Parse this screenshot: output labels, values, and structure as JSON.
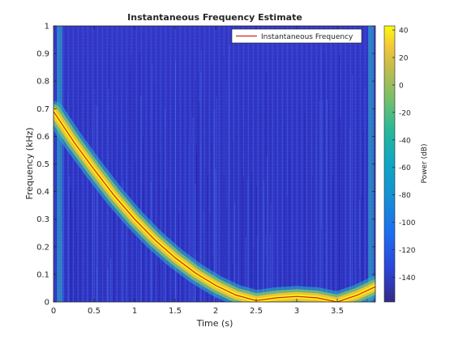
{
  "chart_data": {
    "type": "heatmap",
    "title": "Instantaneous Frequency Estimate",
    "xlabel": "Time (s)",
    "ylabel": "Frequency (kHz)",
    "xlim": [
      0,
      3.97
    ],
    "ylim": [
      0,
      1
    ],
    "xticks": [
      "0",
      "0.5",
      "1",
      "1.5",
      "2",
      "2.5",
      "3",
      "3.5"
    ],
    "xtick_values": [
      0,
      0.5,
      1,
      1.5,
      2,
      2.5,
      3,
      3.5
    ],
    "yticks": [
      "0",
      "0.1",
      "0.2",
      "0.3",
      "0.4",
      "0.5",
      "0.6",
      "0.7",
      "0.8",
      "0.9",
      "1"
    ],
    "ytick_values": [
      0,
      0.1,
      0.2,
      0.3,
      0.4,
      0.5,
      0.6,
      0.7,
      0.8,
      0.9,
      1
    ],
    "legend_position": "top-right",
    "colormap": "parula",
    "colorbar": {
      "label": "Power (dB)",
      "range": [
        -158,
        43
      ],
      "ticks": [
        "40",
        "20",
        "0",
        "-20",
        "-40",
        "-60",
        "-80",
        "-100",
        "-120",
        "-140"
      ],
      "tick_values": [
        40,
        20,
        0,
        -20,
        -40,
        -60,
        -80,
        -100,
        -120,
        -140
      ]
    },
    "series": [
      {
        "name": "Instantaneous Frequency",
        "color": "#d62020",
        "x": [
          0,
          0.25,
          0.5,
          0.75,
          1.0,
          1.25,
          1.5,
          1.75,
          2.0,
          2.25,
          2.5,
          2.75,
          3.0,
          3.25,
          3.5,
          3.75,
          3.97
        ],
        "y": [
          0.69,
          0.58,
          0.48,
          0.385,
          0.3,
          0.225,
          0.16,
          0.105,
          0.06,
          0.025,
          0.005,
          0.015,
          0.02,
          0.015,
          0.0,
          0.025,
          0.055
        ]
      }
    ]
  }
}
